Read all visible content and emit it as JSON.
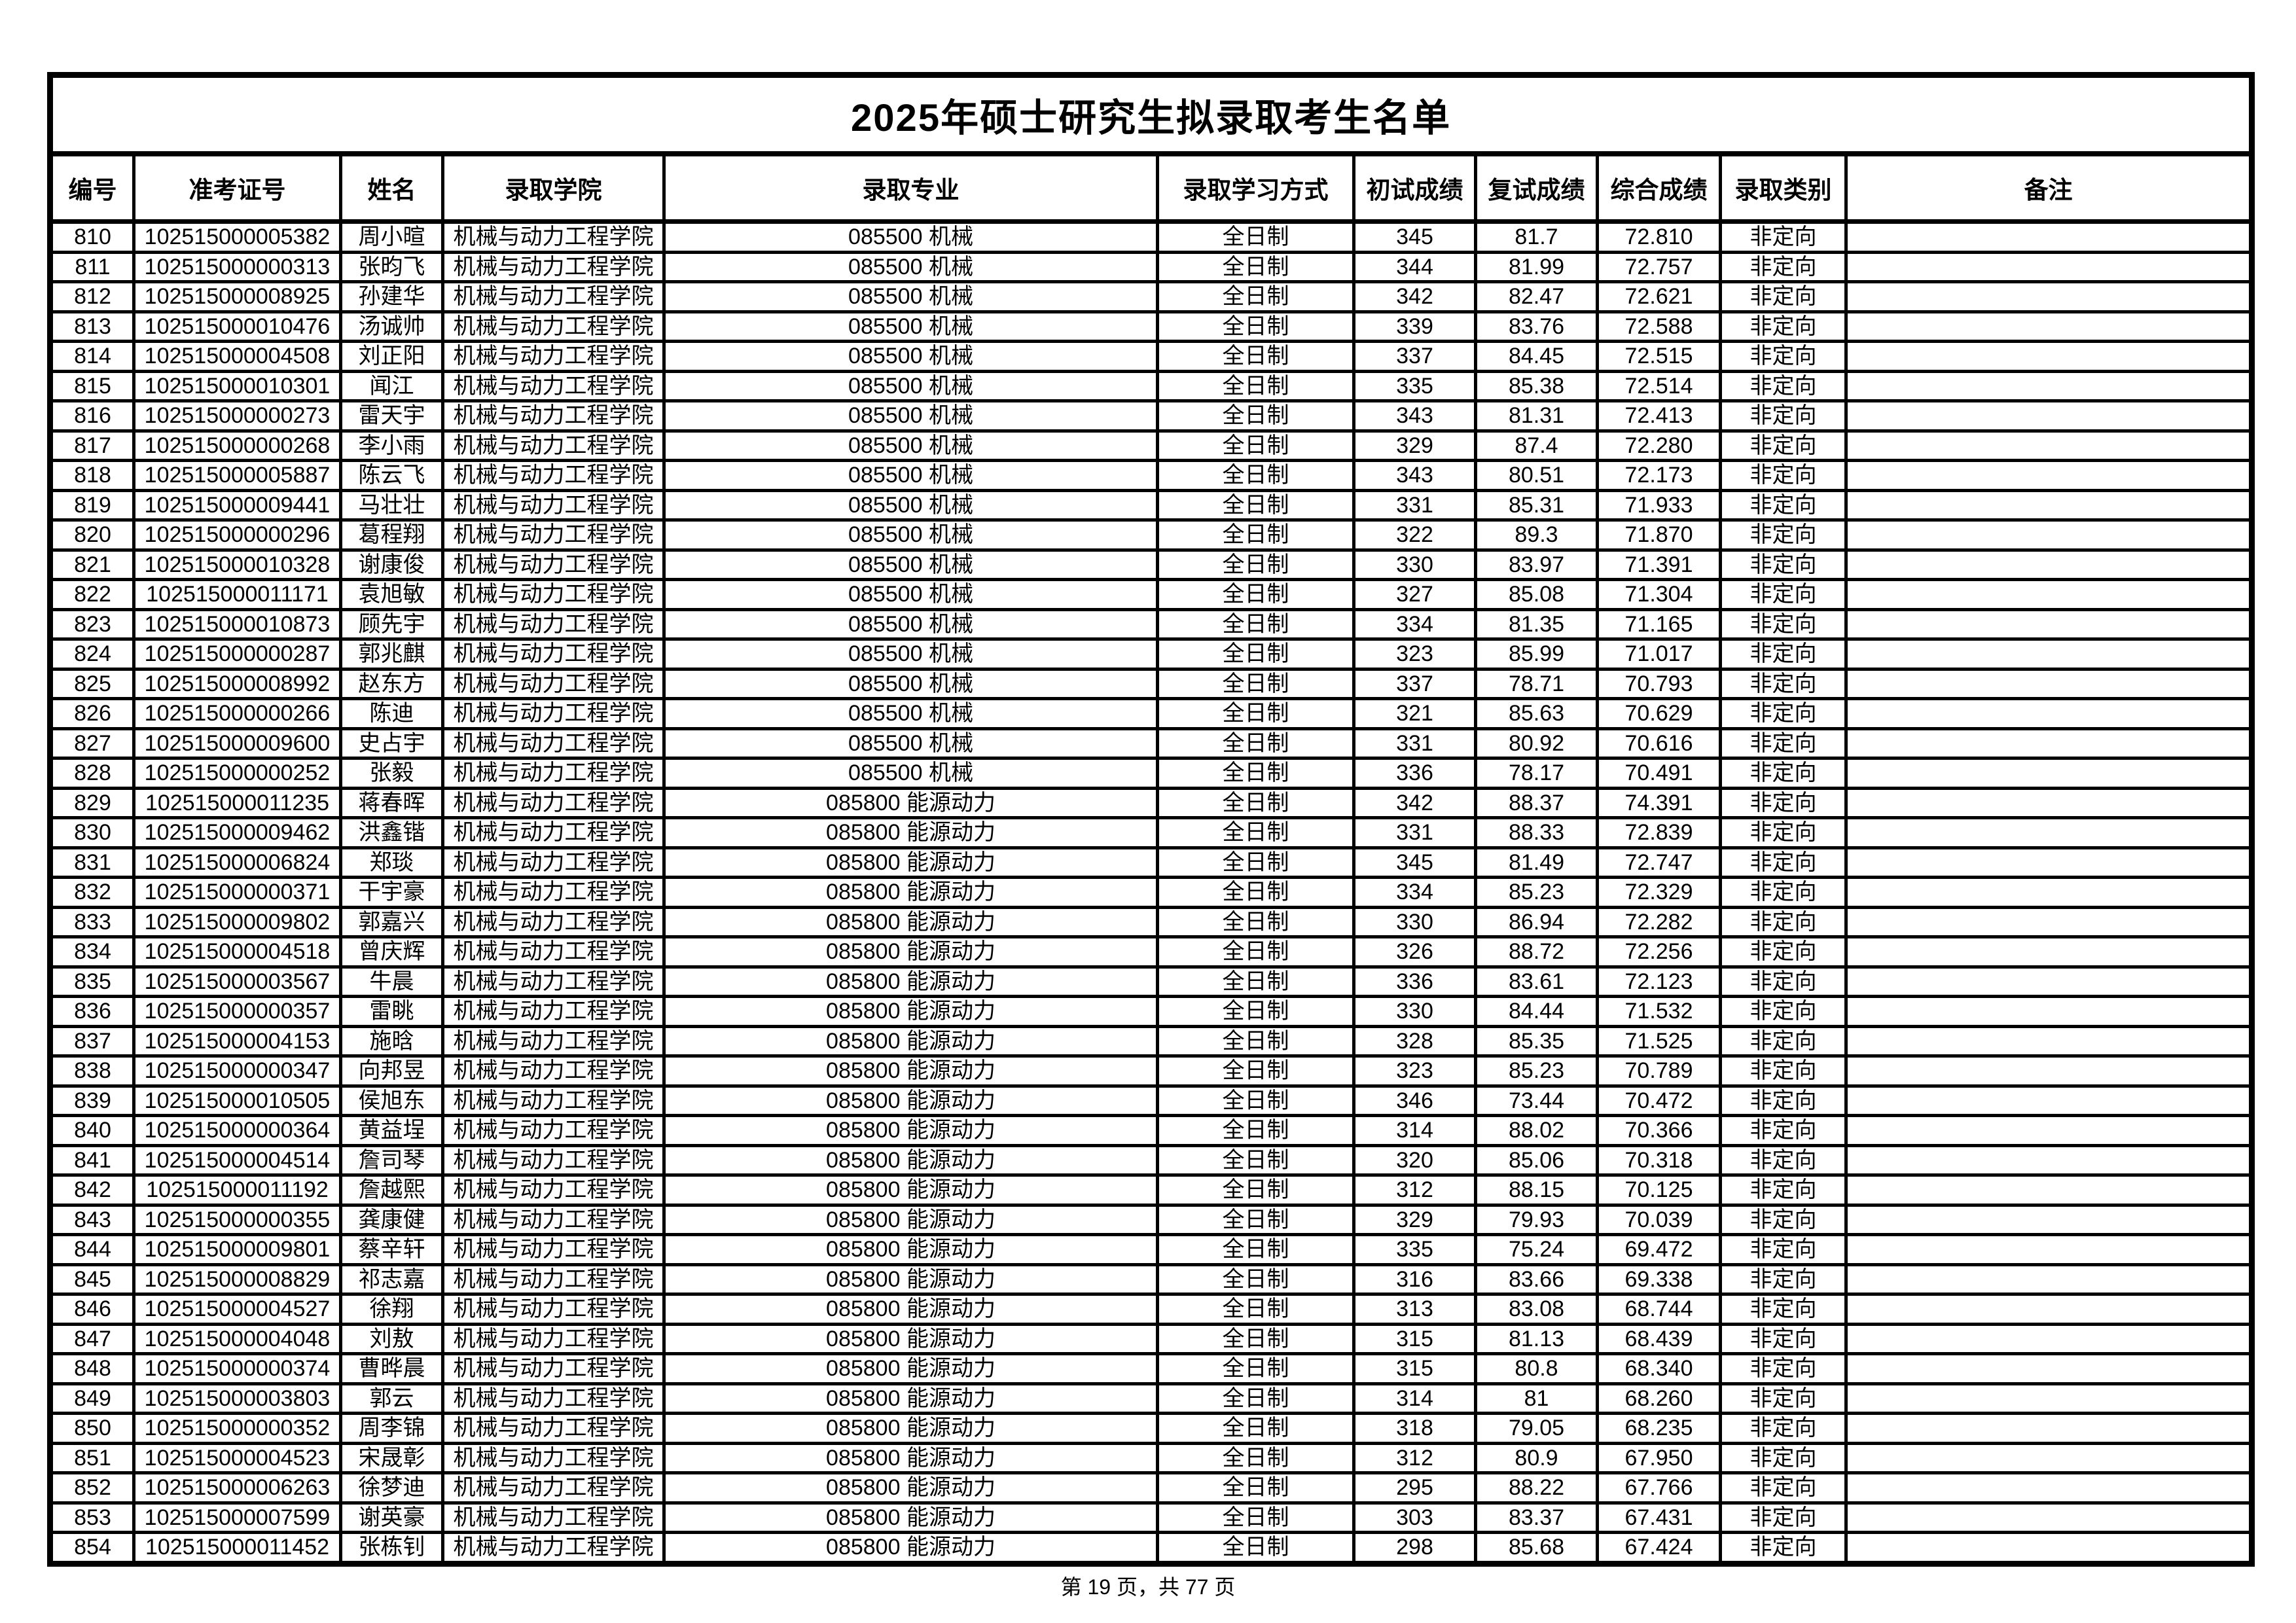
{
  "title": "2025年硕士研究生拟录取考生名单",
  "columns": [
    "编号",
    "准考证号",
    "姓名",
    "录取学院",
    "录取专业",
    "录取学习方式",
    "初试成绩",
    "复试成绩",
    "综合成绩",
    "录取类别",
    "备注"
  ],
  "column_keys": [
    "no",
    "ticket",
    "name",
    "college",
    "major",
    "mode",
    "initial-score",
    "retest-score",
    "overall-score",
    "category",
    "remark"
  ],
  "rows": [
    [
      "810",
      "102515000005382",
      "周小暄",
      "机械与动力工程学院",
      "085500 机械",
      "全日制",
      "345",
      "81.7",
      "72.810",
      "非定向",
      ""
    ],
    [
      "811",
      "102515000000313",
      "张昀飞",
      "机械与动力工程学院",
      "085500 机械",
      "全日制",
      "344",
      "81.99",
      "72.757",
      "非定向",
      ""
    ],
    [
      "812",
      "102515000008925",
      "孙建华",
      "机械与动力工程学院",
      "085500 机械",
      "全日制",
      "342",
      "82.47",
      "72.621",
      "非定向",
      ""
    ],
    [
      "813",
      "102515000010476",
      "汤诚帅",
      "机械与动力工程学院",
      "085500 机械",
      "全日制",
      "339",
      "83.76",
      "72.588",
      "非定向",
      ""
    ],
    [
      "814",
      "102515000004508",
      "刘正阳",
      "机械与动力工程学院",
      "085500 机械",
      "全日制",
      "337",
      "84.45",
      "72.515",
      "非定向",
      ""
    ],
    [
      "815",
      "102515000010301",
      "闻江",
      "机械与动力工程学院",
      "085500 机械",
      "全日制",
      "335",
      "85.38",
      "72.514",
      "非定向",
      ""
    ],
    [
      "816",
      "102515000000273",
      "雷天宇",
      "机械与动力工程学院",
      "085500 机械",
      "全日制",
      "343",
      "81.31",
      "72.413",
      "非定向",
      ""
    ],
    [
      "817",
      "102515000000268",
      "李小雨",
      "机械与动力工程学院",
      "085500 机械",
      "全日制",
      "329",
      "87.4",
      "72.280",
      "非定向",
      ""
    ],
    [
      "818",
      "102515000005887",
      "陈云飞",
      "机械与动力工程学院",
      "085500 机械",
      "全日制",
      "343",
      "80.51",
      "72.173",
      "非定向",
      ""
    ],
    [
      "819",
      "102515000009441",
      "马壮壮",
      "机械与动力工程学院",
      "085500 机械",
      "全日制",
      "331",
      "85.31",
      "71.933",
      "非定向",
      ""
    ],
    [
      "820",
      "102515000000296",
      "葛程翔",
      "机械与动力工程学院",
      "085500 机械",
      "全日制",
      "322",
      "89.3",
      "71.870",
      "非定向",
      ""
    ],
    [
      "821",
      "102515000010328",
      "谢康俊",
      "机械与动力工程学院",
      "085500 机械",
      "全日制",
      "330",
      "83.97",
      "71.391",
      "非定向",
      ""
    ],
    [
      "822",
      "102515000011171",
      "袁旭敏",
      "机械与动力工程学院",
      "085500 机械",
      "全日制",
      "327",
      "85.08",
      "71.304",
      "非定向",
      ""
    ],
    [
      "823",
      "102515000010873",
      "顾先宇",
      "机械与动力工程学院",
      "085500 机械",
      "全日制",
      "334",
      "81.35",
      "71.165",
      "非定向",
      ""
    ],
    [
      "824",
      "102515000000287",
      "郭兆麒",
      "机械与动力工程学院",
      "085500 机械",
      "全日制",
      "323",
      "85.99",
      "71.017",
      "非定向",
      ""
    ],
    [
      "825",
      "102515000008992",
      "赵东方",
      "机械与动力工程学院",
      "085500 机械",
      "全日制",
      "337",
      "78.71",
      "70.793",
      "非定向",
      ""
    ],
    [
      "826",
      "102515000000266",
      "陈迪",
      "机械与动力工程学院",
      "085500 机械",
      "全日制",
      "321",
      "85.63",
      "70.629",
      "非定向",
      ""
    ],
    [
      "827",
      "102515000009600",
      "史占宇",
      "机械与动力工程学院",
      "085500 机械",
      "全日制",
      "331",
      "80.92",
      "70.616",
      "非定向",
      ""
    ],
    [
      "828",
      "102515000000252",
      "张毅",
      "机械与动力工程学院",
      "085500 机械",
      "全日制",
      "336",
      "78.17",
      "70.491",
      "非定向",
      ""
    ],
    [
      "829",
      "102515000011235",
      "蒋春晖",
      "机械与动力工程学院",
      "085800 能源动力",
      "全日制",
      "342",
      "88.37",
      "74.391",
      "非定向",
      ""
    ],
    [
      "830",
      "102515000009462",
      "洪鑫锴",
      "机械与动力工程学院",
      "085800 能源动力",
      "全日制",
      "331",
      "88.33",
      "72.839",
      "非定向",
      ""
    ],
    [
      "831",
      "102515000006824",
      "郑琰",
      "机械与动力工程学院",
      "085800 能源动力",
      "全日制",
      "345",
      "81.49",
      "72.747",
      "非定向",
      ""
    ],
    [
      "832",
      "102515000000371",
      "干宇豪",
      "机械与动力工程学院",
      "085800 能源动力",
      "全日制",
      "334",
      "85.23",
      "72.329",
      "非定向",
      ""
    ],
    [
      "833",
      "102515000009802",
      "郭嘉兴",
      "机械与动力工程学院",
      "085800 能源动力",
      "全日制",
      "330",
      "86.94",
      "72.282",
      "非定向",
      ""
    ],
    [
      "834",
      "102515000004518",
      "曾庆辉",
      "机械与动力工程学院",
      "085800 能源动力",
      "全日制",
      "326",
      "88.72",
      "72.256",
      "非定向",
      ""
    ],
    [
      "835",
      "102515000003567",
      "牛晨",
      "机械与动力工程学院",
      "085800 能源动力",
      "全日制",
      "336",
      "83.61",
      "72.123",
      "非定向",
      ""
    ],
    [
      "836",
      "102515000000357",
      "雷眺",
      "机械与动力工程学院",
      "085800 能源动力",
      "全日制",
      "330",
      "84.44",
      "71.532",
      "非定向",
      ""
    ],
    [
      "837",
      "102515000004153",
      "施晗",
      "机械与动力工程学院",
      "085800 能源动力",
      "全日制",
      "328",
      "85.35",
      "71.525",
      "非定向",
      ""
    ],
    [
      "838",
      "102515000000347",
      "向邦昱",
      "机械与动力工程学院",
      "085800 能源动力",
      "全日制",
      "323",
      "85.23",
      "70.789",
      "非定向",
      ""
    ],
    [
      "839",
      "102515000010505",
      "侯旭东",
      "机械与动力工程学院",
      "085800 能源动力",
      "全日制",
      "346",
      "73.44",
      "70.472",
      "非定向",
      ""
    ],
    [
      "840",
      "102515000000364",
      "黄益埕",
      "机械与动力工程学院",
      "085800 能源动力",
      "全日制",
      "314",
      "88.02",
      "70.366",
      "非定向",
      ""
    ],
    [
      "841",
      "102515000004514",
      "詹司琴",
      "机械与动力工程学院",
      "085800 能源动力",
      "全日制",
      "320",
      "85.06",
      "70.318",
      "非定向",
      ""
    ],
    [
      "842",
      "102515000011192",
      "詹越熙",
      "机械与动力工程学院",
      "085800 能源动力",
      "全日制",
      "312",
      "88.15",
      "70.125",
      "非定向",
      ""
    ],
    [
      "843",
      "102515000000355",
      "龚康健",
      "机械与动力工程学院",
      "085800 能源动力",
      "全日制",
      "329",
      "79.93",
      "70.039",
      "非定向",
      ""
    ],
    [
      "844",
      "102515000009801",
      "蔡辛轩",
      "机械与动力工程学院",
      "085800 能源动力",
      "全日制",
      "335",
      "75.24",
      "69.472",
      "非定向",
      ""
    ],
    [
      "845",
      "102515000008829",
      "祁志嘉",
      "机械与动力工程学院",
      "085800 能源动力",
      "全日制",
      "316",
      "83.66",
      "69.338",
      "非定向",
      ""
    ],
    [
      "846",
      "102515000004527",
      "徐翔",
      "机械与动力工程学院",
      "085800 能源动力",
      "全日制",
      "313",
      "83.08",
      "68.744",
      "非定向",
      ""
    ],
    [
      "847",
      "102515000004048",
      "刘敖",
      "机械与动力工程学院",
      "085800 能源动力",
      "全日制",
      "315",
      "81.13",
      "68.439",
      "非定向",
      ""
    ],
    [
      "848",
      "102515000000374",
      "曹晔晨",
      "机械与动力工程学院",
      "085800 能源动力",
      "全日制",
      "315",
      "80.8",
      "68.340",
      "非定向",
      ""
    ],
    [
      "849",
      "102515000003803",
      "郭云",
      "机械与动力工程学院",
      "085800 能源动力",
      "全日制",
      "314",
      "81",
      "68.260",
      "非定向",
      ""
    ],
    [
      "850",
      "102515000000352",
      "周李锦",
      "机械与动力工程学院",
      "085800 能源动力",
      "全日制",
      "318",
      "79.05",
      "68.235",
      "非定向",
      ""
    ],
    [
      "851",
      "102515000004523",
      "宋晟彰",
      "机械与动力工程学院",
      "085800 能源动力",
      "全日制",
      "312",
      "80.9",
      "67.950",
      "非定向",
      ""
    ],
    [
      "852",
      "102515000006263",
      "徐梦迪",
      "机械与动力工程学院",
      "085800 能源动力",
      "全日制",
      "295",
      "88.22",
      "67.766",
      "非定向",
      ""
    ],
    [
      "853",
      "102515000007599",
      "谢英豪",
      "机械与动力工程学院",
      "085800 能源动力",
      "全日制",
      "303",
      "83.37",
      "67.431",
      "非定向",
      ""
    ],
    [
      "854",
      "102515000011452",
      "张栋钊",
      "机械与动力工程学院",
      "085800 能源动力",
      "全日制",
      "298",
      "85.68",
      "67.424",
      "非定向",
      ""
    ]
  ],
  "footer": {
    "text": "第 19 页，共 77 页"
  }
}
